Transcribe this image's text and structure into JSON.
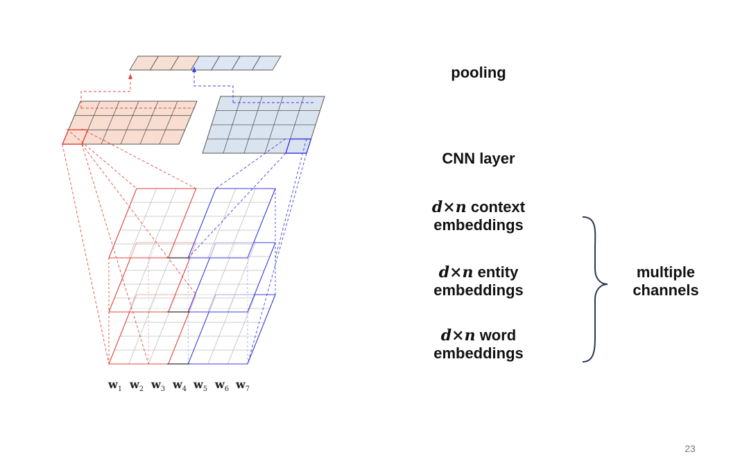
{
  "labels": {
    "pooling": "pooling",
    "cnn_layer": "CNN layer",
    "context": {
      "dim": "d×n",
      "line1": "context",
      "line2": "embeddings"
    },
    "entity": {
      "dim": "d×n",
      "line1": "entity",
      "line2": "embeddings"
    },
    "word": {
      "dim": "d×n",
      "line1": "word",
      "line2": "embeddings"
    },
    "group": {
      "line1": "multiple",
      "line2": "channels"
    }
  },
  "words": [
    {
      "base": "w",
      "sub": "1"
    },
    {
      "base": "w",
      "sub": "2"
    },
    {
      "base": "w",
      "sub": "3"
    },
    {
      "base": "w",
      "sub": "4"
    },
    {
      "base": "w",
      "sub": "5"
    },
    {
      "base": "w",
      "sub": "6"
    },
    {
      "base": "w",
      "sub": "7"
    }
  ],
  "page_number": "23",
  "colors": {
    "red": "#e0453f",
    "blue": "#3c3ce0",
    "dark": "#333333",
    "pool_fill_red": "#f7dfd3",
    "pool_fill_blue": "#dde7f3",
    "map_fill_red": "#f8ddd0",
    "map_fill_blue": "#dae4f0",
    "grid": "#bcbcbc"
  }
}
